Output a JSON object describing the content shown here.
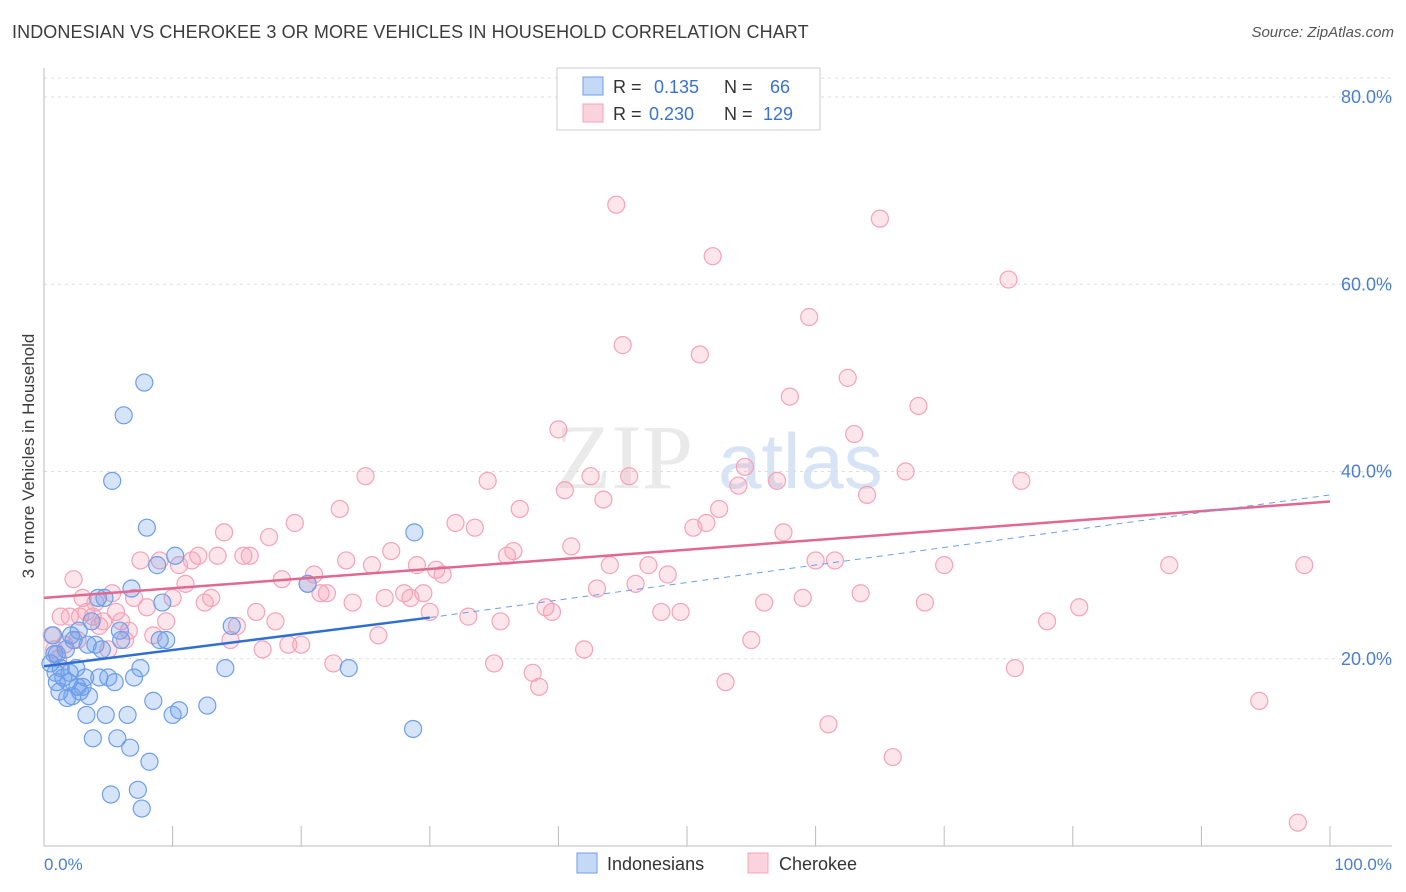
{
  "title": "INDONESIAN VS CHEROKEE 3 OR MORE VEHICLES IN HOUSEHOLD CORRELATION CHART",
  "source": "Source: ZipAtlas.com",
  "watermark": {
    "zip": "ZIP",
    "atlas": "atlas"
  },
  "legend_box": {
    "rows": [
      {
        "r_label": "R =",
        "r_value": "0.135",
        "n_label": "N =",
        "n_value": "66"
      },
      {
        "r_label": "R =",
        "r_value": "0.230",
        "n_label": "N =",
        "n_value": "129"
      }
    ]
  },
  "chart_data": {
    "type": "scatter",
    "title": "INDONESIAN VS CHEROKEE 3 OR MORE VEHICLES IN HOUSEHOLD CORRELATION CHART",
    "xlabel": "",
    "ylabel": "3 or more Vehicles in Household",
    "xlim": [
      0,
      100
    ],
    "ylim": [
      0,
      84
    ],
    "x_tick_labels": [
      "0.0%",
      "100.0%"
    ],
    "y_ticks": [
      20,
      40,
      60,
      80
    ],
    "y_tick_labels": [
      "20.0%",
      "40.0%",
      "60.0%",
      "80.0%"
    ],
    "grid": true,
    "legend": "bottom-center",
    "colors": {
      "Indonesians": "#6d9eeb",
      "Cherokee": "#f4a3b8",
      "Indonesians_line": "#2f6fd1",
      "Cherokee_line": "#e06891"
    },
    "series": [
      {
        "name": "Indonesians",
        "r": 0.135,
        "n": 66,
        "trend": {
          "x0": 0,
          "y0": 19.2,
          "x1": 30,
          "y1": 24.4,
          "dashed_to_x": 100,
          "dashed_to_y": 37.5
        },
        "points": [
          [
            0.5,
            19.5
          ],
          [
            0.7,
            22.5
          ],
          [
            0.8,
            20.5
          ],
          [
            1.0,
            17.5
          ],
          [
            1.2,
            16.5
          ],
          [
            1.3,
            19
          ],
          [
            1.5,
            18
          ],
          [
            1.7,
            21
          ],
          [
            1.8,
            15.8
          ],
          [
            2.0,
            18.5
          ],
          [
            2.2,
            16
          ],
          [
            2.3,
            22
          ],
          [
            2.5,
            19
          ],
          [
            2.7,
            23
          ],
          [
            2.8,
            16.5
          ],
          [
            3.0,
            17
          ],
          [
            3.2,
            18
          ],
          [
            3.3,
            14
          ],
          [
            3.5,
            16
          ],
          [
            3.7,
            24
          ],
          [
            3.8,
            11.5
          ],
          [
            4.0,
            21.5
          ],
          [
            4.2,
            26.5
          ],
          [
            4.3,
            18
          ],
          [
            4.5,
            21
          ],
          [
            4.7,
            26.5
          ],
          [
            4.8,
            14
          ],
          [
            5.0,
            18
          ],
          [
            5.2,
            5.5
          ],
          [
            5.3,
            39
          ],
          [
            5.5,
            17.5
          ],
          [
            5.7,
            11.5
          ],
          [
            6.0,
            22
          ],
          [
            6.2,
            46
          ],
          [
            6.5,
            14
          ],
          [
            6.7,
            10.5
          ],
          [
            6.8,
            27.5
          ],
          [
            7.0,
            18
          ],
          [
            7.3,
            6
          ],
          [
            7.5,
            19
          ],
          [
            7.6,
            4
          ],
          [
            7.8,
            49.5
          ],
          [
            8.0,
            34
          ],
          [
            8.2,
            9
          ],
          [
            8.5,
            15.5
          ],
          [
            8.8,
            30
          ],
          [
            9.0,
            22
          ],
          [
            9.2,
            26
          ],
          [
            9.5,
            22
          ],
          [
            10.0,
            14
          ],
          [
            10.2,
            31
          ],
          [
            10.5,
            14.5
          ],
          [
            12.7,
            15
          ],
          [
            14.1,
            19
          ],
          [
            14.6,
            23.5
          ],
          [
            20.5,
            28
          ],
          [
            23.7,
            19
          ],
          [
            28.7,
            12.5
          ],
          [
            28.8,
            33.5
          ],
          [
            1.0,
            20.5
          ],
          [
            1.9,
            17.5
          ],
          [
            3.4,
            21.5
          ],
          [
            2.1,
            22.5
          ],
          [
            0.9,
            18.5
          ],
          [
            2.6,
            17
          ],
          [
            5.9,
            23
          ]
        ]
      },
      {
        "name": "Cherokee",
        "r": 0.23,
        "n": 129,
        "trend": {
          "x0": 0,
          "y0": 26.5,
          "x1": 100,
          "y1": 36.8
        },
        "points": [
          [
            0.6,
            22.5
          ],
          [
            0.8,
            21
          ],
          [
            1.1,
            20
          ],
          [
            1.3,
            24.5
          ],
          [
            1.6,
            21.5
          ],
          [
            2.0,
            24.5
          ],
          [
            2.3,
            28.5
          ],
          [
            2.6,
            22
          ],
          [
            2.8,
            24.5
          ],
          [
            3.0,
            26.5
          ],
          [
            3.3,
            25
          ],
          [
            3.8,
            24.5
          ],
          [
            4.0,
            26
          ],
          [
            4.3,
            23.5
          ],
          [
            4.6,
            24
          ],
          [
            5.0,
            21
          ],
          [
            5.3,
            27
          ],
          [
            5.6,
            25
          ],
          [
            6.0,
            24
          ],
          [
            6.3,
            22
          ],
          [
            6.6,
            23
          ],
          [
            7.0,
            26.5
          ],
          [
            7.5,
            30.5
          ],
          [
            8.0,
            25.5
          ],
          [
            8.5,
            22.5
          ],
          [
            9.0,
            30.5
          ],
          [
            9.5,
            24
          ],
          [
            10.0,
            26.5
          ],
          [
            10.5,
            30
          ],
          [
            11.0,
            28
          ],
          [
            11.5,
            30.5
          ],
          [
            12.0,
            31
          ],
          [
            12.5,
            26
          ],
          [
            13.0,
            26.5
          ],
          [
            13.5,
            31
          ],
          [
            14.0,
            33.5
          ],
          [
            14.5,
            22
          ],
          [
            15.0,
            23.5
          ],
          [
            15.5,
            31
          ],
          [
            16.0,
            31
          ],
          [
            16.5,
            25
          ],
          [
            17.0,
            21
          ],
          [
            17.5,
            33
          ],
          [
            18.0,
            24
          ],
          [
            18.5,
            28.5
          ],
          [
            19.0,
            21.5
          ],
          [
            19.5,
            34.5
          ],
          [
            20.0,
            21.5
          ],
          [
            20.5,
            28
          ],
          [
            21.0,
            29
          ],
          [
            21.5,
            27
          ],
          [
            22.0,
            27
          ],
          [
            22.5,
            19.5
          ],
          [
            23.0,
            36
          ],
          [
            23.5,
            30.5
          ],
          [
            24.0,
            26
          ],
          [
            25.0,
            39.5
          ],
          [
            25.5,
            30
          ],
          [
            26.0,
            22.5
          ],
          [
            26.5,
            26.5
          ],
          [
            27.0,
            31.5
          ],
          [
            28.0,
            27
          ],
          [
            28.5,
            26.5
          ],
          [
            29.0,
            30
          ],
          [
            29.5,
            27
          ],
          [
            30.0,
            25
          ],
          [
            30.5,
            29.5
          ],
          [
            31.0,
            29
          ],
          [
            32.0,
            34.5
          ],
          [
            33.0,
            24.5
          ],
          [
            33.5,
            34
          ],
          [
            34.5,
            39
          ],
          [
            35.0,
            19.5
          ],
          [
            35.5,
            24
          ],
          [
            36.0,
            31
          ],
          [
            36.5,
            31.5
          ],
          [
            37.0,
            36
          ],
          [
            38.0,
            18.5
          ],
          [
            38.5,
            17
          ],
          [
            39.0,
            25.5
          ],
          [
            39.5,
            25
          ],
          [
            40.0,
            44.5
          ],
          [
            40.5,
            38
          ],
          [
            41.0,
            32
          ],
          [
            42.0,
            21
          ],
          [
            42.5,
            39.5
          ],
          [
            43.0,
            27.5
          ],
          [
            43.5,
            37
          ],
          [
            44.0,
            30
          ],
          [
            44.5,
            68.5
          ],
          [
            45.0,
            53.5
          ],
          [
            45.5,
            39.5
          ],
          [
            46.0,
            28
          ],
          [
            47.0,
            30
          ],
          [
            48.0,
            25
          ],
          [
            48.5,
            29
          ],
          [
            49.5,
            25
          ],
          [
            50.5,
            34
          ],
          [
            51.0,
            52.5
          ],
          [
            51.5,
            34.5
          ],
          [
            52.0,
            63
          ],
          [
            52.5,
            36
          ],
          [
            53.0,
            17.5
          ],
          [
            54.0,
            38.5
          ],
          [
            54.5,
            40.5
          ],
          [
            55.0,
            22
          ],
          [
            56.0,
            26
          ],
          [
            57.0,
            39
          ],
          [
            57.5,
            33.5
          ],
          [
            58.0,
            48
          ],
          [
            59.0,
            26.5
          ],
          [
            59.5,
            56.5
          ],
          [
            60.0,
            30.5
          ],
          [
            61.0,
            13
          ],
          [
            61.5,
            30.5
          ],
          [
            62.5,
            50
          ],
          [
            63.0,
            44
          ],
          [
            63.5,
            27
          ],
          [
            64.0,
            37.5
          ],
          [
            65.0,
            67
          ],
          [
            66.0,
            9.5
          ],
          [
            67.0,
            40
          ],
          [
            68.0,
            47
          ],
          [
            68.5,
            26
          ],
          [
            70.0,
            30
          ],
          [
            75.0,
            60.5
          ],
          [
            75.5,
            19
          ],
          [
            76.0,
            39
          ],
          [
            78.0,
            24
          ],
          [
            80.5,
            25.5
          ],
          [
            87.5,
            30
          ],
          [
            94.5,
            15.5
          ],
          [
            97.5,
            2.5
          ],
          [
            98.0,
            30
          ]
        ]
      }
    ]
  },
  "bottom_legend": [
    {
      "label": "Indonesians"
    },
    {
      "label": "Cherokee"
    }
  ]
}
